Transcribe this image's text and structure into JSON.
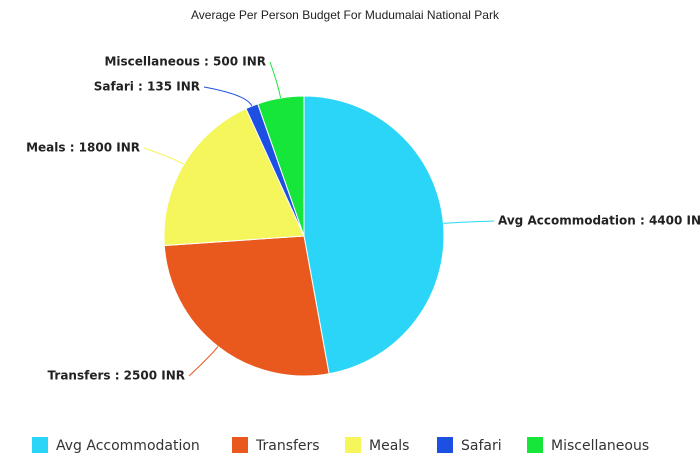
{
  "chart_data": {
    "type": "pie",
    "title": "Average Per Person Budget For Mudumalai National Park",
    "categories": [
      "Avg Accommodation",
      "Transfers",
      "Meals",
      "Safari",
      "Miscellaneous"
    ],
    "values": [
      4400,
      2500,
      1800,
      135,
      500
    ],
    "value_labels": [
      "Avg Accommodation : 4400 INR",
      "Transfers : 2500 INR",
      "Meals : 1800 INR",
      "Safari : 135 INR",
      "Miscellaneous : 500 INR"
    ],
    "colors": [
      "#2bd5f7",
      "#e9581d",
      "#f5f55c",
      "#1d4fe2",
      "#16e63a"
    ],
    "legend": "bottom"
  }
}
